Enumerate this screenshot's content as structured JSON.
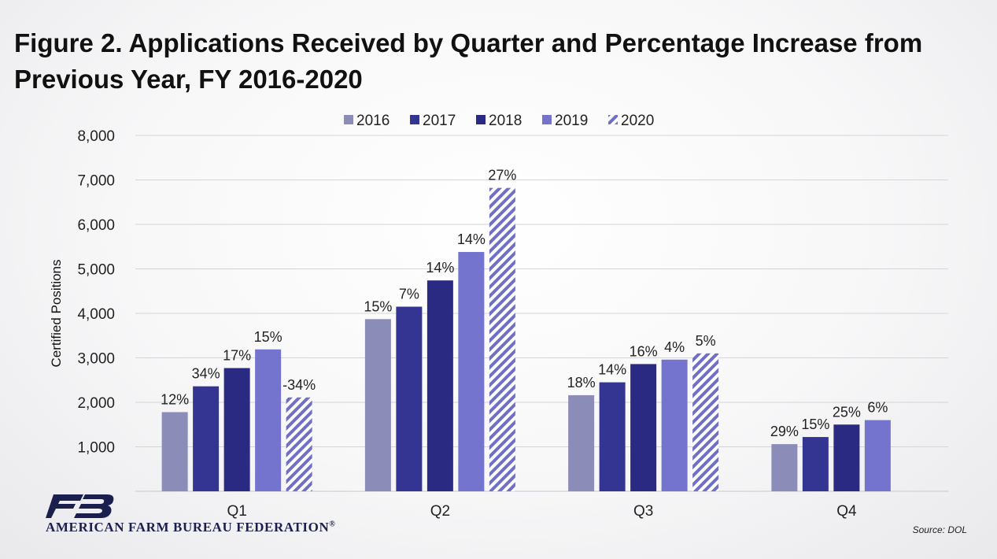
{
  "title": "Figure 2. Applications Received by Quarter and Percentage Increase from Previous Year, FY 2016-2020",
  "source": "Source: DOL",
  "logo": {
    "org_name": "AMERICAN FARM BUREAU FEDERATION",
    "registered": "®",
    "icon": "farm-bureau-fb-logo-icon"
  },
  "chart_data": {
    "type": "bar",
    "title": "Figure 2. Applications Received by Quarter and Percentage Increase from Previous Year, FY 2016-2020",
    "xlabel": "",
    "ylabel": "Certified Positions",
    "ylim": [
      0,
      8000
    ],
    "yticks": [
      1000,
      2000,
      3000,
      4000,
      5000,
      6000,
      7000,
      8000
    ],
    "ytick_labels": [
      "1,000",
      "2,000",
      "3,000",
      "4,000",
      "5,000",
      "6,000",
      "7,000",
      "8,000"
    ],
    "grid": true,
    "legend_position": "top-center",
    "categories": [
      "Q1",
      "Q2",
      "Q3",
      "Q4"
    ],
    "series": [
      {
        "name": "2016",
        "color": "#8c8cb8",
        "pattern": "solid",
        "values": [
          1780,
          3870,
          2160,
          1060
        ],
        "labels": [
          "12%",
          "15%",
          "18%",
          "29%"
        ]
      },
      {
        "name": "2017",
        "color": "#343493",
        "pattern": "solid",
        "values": [
          2360,
          4150,
          2450,
          1220
        ],
        "labels": [
          "34%",
          "7%",
          "14%",
          "15%"
        ]
      },
      {
        "name": "2018",
        "color": "#2b2a82",
        "pattern": "solid",
        "values": [
          2770,
          4740,
          2860,
          1500
        ],
        "labels": [
          "17%",
          "14%",
          "16%",
          "25%"
        ]
      },
      {
        "name": "2019",
        "color": "#7474cf",
        "pattern": "solid",
        "values": [
          3190,
          5380,
          2960,
          1600
        ],
        "labels": [
          "15%",
          "14%",
          "4%",
          "6%"
        ]
      },
      {
        "name": "2020",
        "color": "#6f6fc4",
        "pattern": "diagonal-stripes",
        "values": [
          2110,
          6820,
          3100,
          null
        ],
        "labels": [
          "-34%",
          "27%",
          "5%",
          ""
        ]
      }
    ]
  }
}
